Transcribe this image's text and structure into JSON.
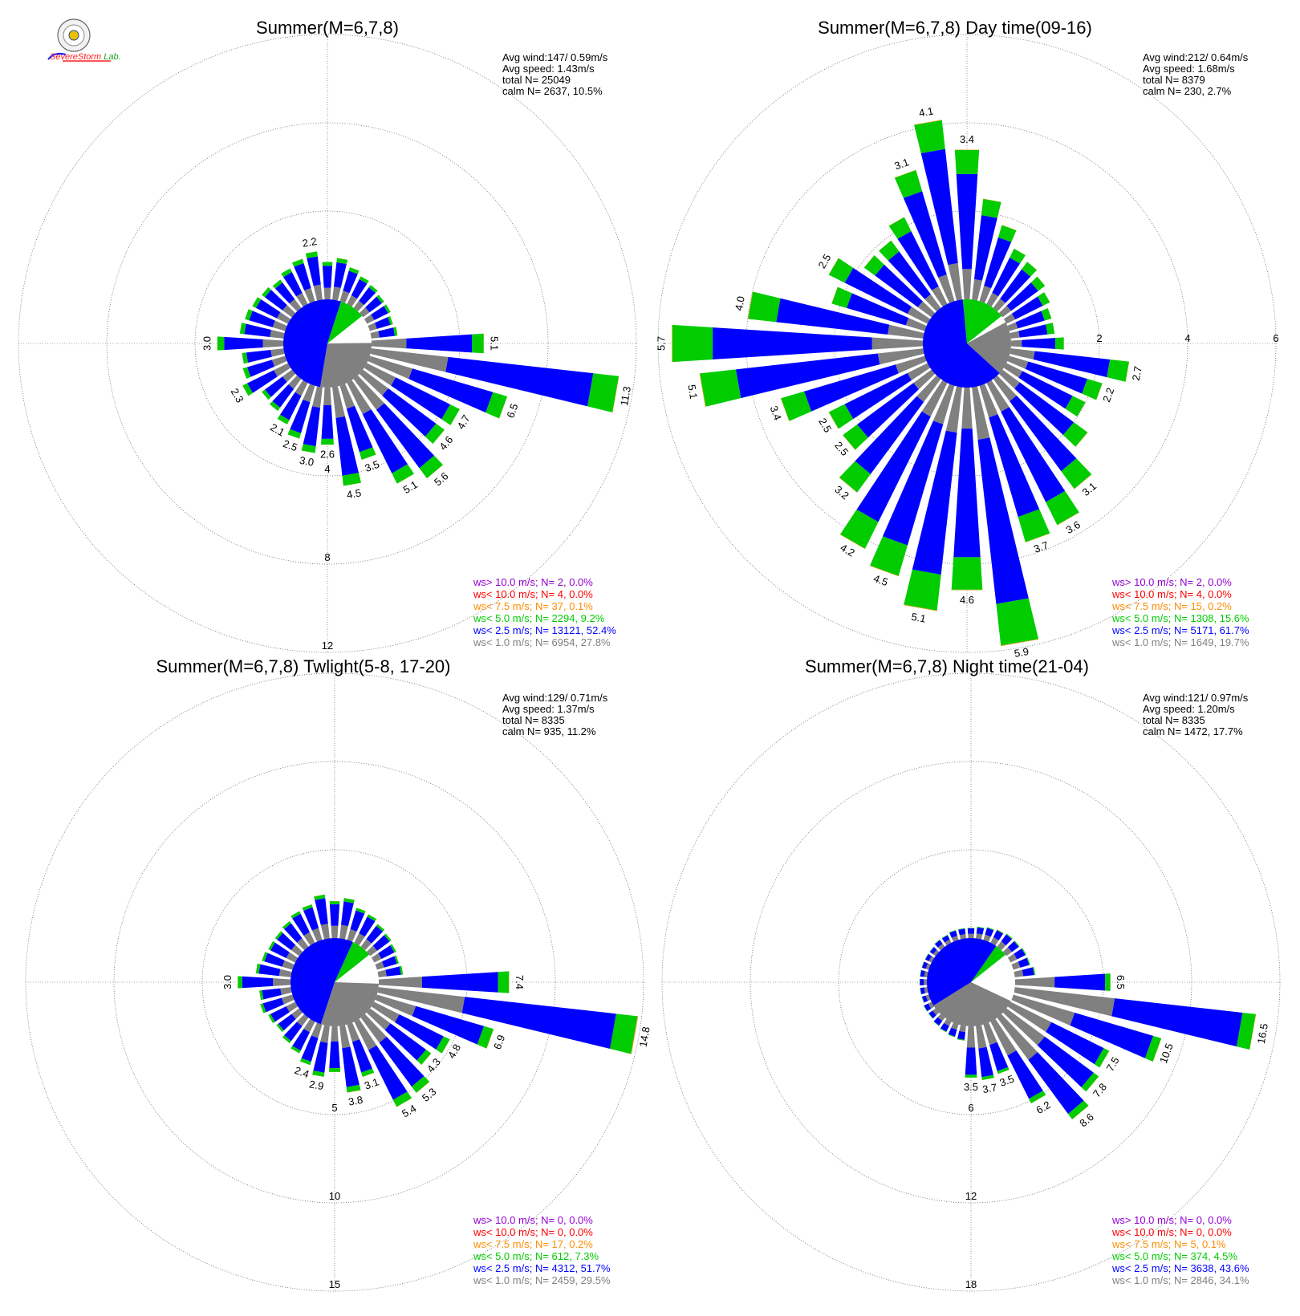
{
  "logo": {
    "name": "Severe Storm Lab."
  },
  "colors": {
    "calm": "#808080",
    "ws_lt_1": "#808080",
    "ws_lt_2_5": "#0000ff",
    "ws_lt_5": "#00cc00",
    "ws_lt_7_5": "#ff8c00",
    "ws_lt_10": "#ff0000",
    "ws_gt_10": "#9400d3",
    "grid": "#555555"
  },
  "chart_data": [
    {
      "type": "windrose",
      "title": "Summer(M=6,7,8)",
      "stats": [
        "Avg wind:147/ 0.59m/s",
        "Avg speed: 1.43m/s",
        "total N=       25049",
        "calm N=   2637,  10.5%"
      ],
      "ring_values": [
        4,
        8,
        12
      ],
      "ring_labels": [
        "4",
        "8",
        "12"
      ],
      "rmax": 12,
      "calm_pct": 10.5,
      "speed_classes": [
        0.278,
        0.524,
        0.092,
        0.001,
        0.0,
        0.0
      ],
      "bars": [
        {
          "dir": 90,
          "total": 5.1,
          "label": "5.1"
        },
        {
          "dir": 100,
          "total": 11.3,
          "label": "11.3"
        },
        {
          "dir": 110,
          "total": 6.5,
          "label": "6.5"
        },
        {
          "dir": 120,
          "total": 4.7,
          "label": "4.7"
        },
        {
          "dir": 130,
          "total": 4.6,
          "label": "4.6"
        },
        {
          "dir": 140,
          "total": 5.6,
          "label": "5.6"
        },
        {
          "dir": 150,
          "total": 5.1,
          "label": "5.1"
        },
        {
          "dir": 160,
          "total": 3.5,
          "label": "3.5"
        },
        {
          "dir": 170,
          "total": 4.5,
          "label": "4.5"
        },
        {
          "dir": 180,
          "total": 2.6,
          "label": "2.6"
        },
        {
          "dir": 190,
          "total": 3.0,
          "label": "3.0"
        },
        {
          "dir": 200,
          "total": 2.5,
          "label": "2.5"
        },
        {
          "dir": 210,
          "total": 2.1,
          "label": "2.1"
        },
        {
          "dir": 220,
          "total": 1.8
        },
        {
          "dir": 230,
          "total": 1.7
        },
        {
          "dir": 240,
          "total": 2.3,
          "label": "2.3"
        },
        {
          "dir": 250,
          "total": 2.0
        },
        {
          "dir": 260,
          "total": 1.9
        },
        {
          "dir": 270,
          "total": 3.0,
          "label": "3.0"
        },
        {
          "dir": 280,
          "total": 2.0
        },
        {
          "dir": 290,
          "total": 1.9
        },
        {
          "dir": 300,
          "total": 1.8
        },
        {
          "dir": 310,
          "total": 1.7
        },
        {
          "dir": 320,
          "total": 1.6
        },
        {
          "dir": 330,
          "total": 1.8
        },
        {
          "dir": 340,
          "total": 2.0
        },
        {
          "dir": 350,
          "total": 2.2,
          "label": "2.2"
        },
        {
          "dir": 0,
          "total": 1.7
        },
        {
          "dir": 10,
          "total": 1.9
        },
        {
          "dir": 20,
          "total": 1.6
        },
        {
          "dir": 30,
          "total": 1.4
        },
        {
          "dir": 40,
          "total": 1.3
        },
        {
          "dir": 50,
          "total": 1.2
        },
        {
          "dir": 60,
          "total": 1.2
        },
        {
          "dir": 70,
          "total": 1.1
        },
        {
          "dir": 80,
          "total": 1.2
        }
      ],
      "legend": [
        {
          "text": "ws> 10.0 m/s; N=     2,  0.0%",
          "class": "ws_gt_10"
        },
        {
          "text": "ws< 10.0 m/s; N=     4,  0.0%",
          "class": "ws_lt_10"
        },
        {
          "text": "ws<  7.5 m/s; N=    37,  0.1%",
          "class": "ws_lt_7_5"
        },
        {
          "text": "ws<  5.0 m/s; N=  2294,  9.2%",
          "class": "ws_lt_5"
        },
        {
          "text": "ws<  2.5 m/s; N= 13121, 52.4%",
          "class": "ws_lt_2_5"
        },
        {
          "text": "ws<  1.0 m/s; N=  6954, 27.8%",
          "class": "ws_lt_1"
        }
      ]
    },
    {
      "type": "windrose",
      "title": "Summer(M=6,7,8) Day time(09-16)",
      "stats": [
        "Avg wind:212/ 0.64m/s",
        "Avg speed: 1.68m/s",
        "total N=       8379",
        "calm N=    230,   2.7%"
      ],
      "ring_values": [
        2,
        4,
        6
      ],
      "ring_labels": [
        "2",
        "4",
        "6"
      ],
      "rmax": 6,
      "calm_pct": 2.7,
      "speed_classes": [
        0.197,
        0.617,
        0.156,
        0.002,
        0.0,
        0.0
      ],
      "bars": [
        {
          "dir": 90,
          "total": 1.2
        },
        {
          "dir": 100,
          "total": 2.7,
          "label": "2.7"
        },
        {
          "dir": 110,
          "total": 2.2,
          "label": "2.2"
        },
        {
          "dir": 120,
          "total": 2.0
        },
        {
          "dir": 130,
          "total": 2.4
        },
        {
          "dir": 140,
          "total": 3.1,
          "label": "3.1"
        },
        {
          "dir": 150,
          "total": 3.6,
          "label": "3.6"
        },
        {
          "dir": 160,
          "total": 3.7,
          "label": "3.7"
        },
        {
          "dir": 170,
          "total": 5.9,
          "label": "5.9"
        },
        {
          "dir": 180,
          "total": 4.6,
          "label": "4.6"
        },
        {
          "dir": 190,
          "total": 5.1,
          "label": "5.1"
        },
        {
          "dir": 200,
          "total": 4.5,
          "label": "4.5"
        },
        {
          "dir": 210,
          "total": 4.2,
          "label": "4.2"
        },
        {
          "dir": 220,
          "total": 3.2,
          "label": "3.2"
        },
        {
          "dir": 230,
          "total": 2.5,
          "label": "2.5"
        },
        {
          "dir": 240,
          "total": 2.5,
          "label": "2.5"
        },
        {
          "dir": 250,
          "total": 3.4,
          "label": "3.4"
        },
        {
          "dir": 260,
          "total": 5.1,
          "label": "5.1"
        },
        {
          "dir": 270,
          "total": 5.7,
          "label": "5.7"
        },
        {
          "dir": 280,
          "total": 4.0,
          "label": "4.0"
        },
        {
          "dir": 290,
          "total": 2.2
        },
        {
          "dir": 300,
          "total": 2.5,
          "label": "2.5"
        },
        {
          "dir": 310,
          "total": 1.9
        },
        {
          "dir": 320,
          "total": 1.9
        },
        {
          "dir": 330,
          "total": 2.2
        },
        {
          "dir": 340,
          "total": 3.1,
          "label": "3.1"
        },
        {
          "dir": 350,
          "total": 4.1,
          "label": "4.1"
        },
        {
          "dir": 0,
          "total": 3.4,
          "label": "3.4"
        },
        {
          "dir": 10,
          "total": 2.3
        },
        {
          "dir": 20,
          "total": 1.8
        },
        {
          "dir": 30,
          "total": 1.4
        },
        {
          "dir": 40,
          "total": 1.3
        },
        {
          "dir": 50,
          "total": 1.2
        },
        {
          "dir": 60,
          "total": 1.1
        },
        {
          "dir": 70,
          "total": 1.0
        },
        {
          "dir": 80,
          "total": 1.0
        }
      ],
      "legend": [
        {
          "text": "ws> 10.0 m/s; N=     2,  0.0%",
          "class": "ws_gt_10"
        },
        {
          "text": "ws< 10.0 m/s; N=     4,  0.0%",
          "class": "ws_lt_10"
        },
        {
          "text": "ws<  7.5 m/s; N=    15,  0.2%",
          "class": "ws_lt_7_5"
        },
        {
          "text": "ws<  5.0 m/s; N=  1308, 15.6%",
          "class": "ws_lt_5"
        },
        {
          "text": "ws<  2.5 m/s; N=  5171, 61.7%",
          "class": "ws_lt_2_5"
        },
        {
          "text": "ws<  1.0 m/s; N=  1649, 19.7%",
          "class": "ws_lt_1"
        }
      ]
    },
    {
      "type": "windrose",
      "title": "Summer(M=6,7,8) Twlight(5-8, 17-20)",
      "stats": [
        "Avg wind:129/ 0.71m/s",
        "Avg speed: 1.37m/s",
        "total N=       8335",
        "calm N=    935,  11.2%"
      ],
      "ring_values": [
        5,
        10,
        15
      ],
      "ring_labels": [
        "5",
        "10",
        "15"
      ],
      "rmax": 15,
      "calm_pct": 11.2,
      "speed_classes": [
        0.295,
        0.517,
        0.073,
        0.002,
        0.0,
        0.0
      ],
      "bars": [
        {
          "dir": 90,
          "total": 7.4,
          "label": "7.4"
        },
        {
          "dir": 100,
          "total": 14.8,
          "label": "14.8"
        },
        {
          "dir": 110,
          "total": 6.9,
          "label": "6.9"
        },
        {
          "dir": 120,
          "total": 4.8,
          "label": "4.8"
        },
        {
          "dir": 130,
          "total": 4.3,
          "label": "4.3"
        },
        {
          "dir": 140,
          "total": 5.3,
          "label": "5.3"
        },
        {
          "dir": 150,
          "total": 5.4,
          "label": "5.4"
        },
        {
          "dir": 160,
          "total": 3.1,
          "label": "3.1"
        },
        {
          "dir": 170,
          "total": 3.8,
          "label": "3.8"
        },
        {
          "dir": 180,
          "total": 2.6
        },
        {
          "dir": 190,
          "total": 2.9,
          "label": "2.9"
        },
        {
          "dir": 200,
          "total": 2.4,
          "label": "2.4"
        },
        {
          "dir": 210,
          "total": 2.0
        },
        {
          "dir": 220,
          "total": 1.8
        },
        {
          "dir": 230,
          "total": 1.6
        },
        {
          "dir": 240,
          "total": 1.7
        },
        {
          "dir": 250,
          "total": 1.9
        },
        {
          "dir": 260,
          "total": 1.8
        },
        {
          "dir": 270,
          "total": 3.0,
          "label": "3.0"
        },
        {
          "dir": 280,
          "total": 2.0
        },
        {
          "dir": 290,
          "total": 1.8
        },
        {
          "dir": 300,
          "total": 1.7
        },
        {
          "dir": 310,
          "total": 1.7
        },
        {
          "dir": 320,
          "total": 1.8
        },
        {
          "dir": 330,
          "total": 2.0
        },
        {
          "dir": 340,
          "total": 2.1
        },
        {
          "dir": 350,
          "total": 2.5
        },
        {
          "dir": 0,
          "total": 2.1
        },
        {
          "dir": 10,
          "total": 2.3
        },
        {
          "dir": 20,
          "total": 1.9
        },
        {
          "dir": 30,
          "total": 1.8
        },
        {
          "dir": 40,
          "total": 1.6
        },
        {
          "dir": 50,
          "total": 1.5
        },
        {
          "dir": 60,
          "total": 1.4
        },
        {
          "dir": 70,
          "total": 1.3
        },
        {
          "dir": 80,
          "total": 1.4
        }
      ],
      "legend": [
        {
          "text": "ws> 10.0 m/s; N=     0,  0.0%",
          "class": "ws_gt_10"
        },
        {
          "text": "ws< 10.0 m/s; N=     0,  0.0%",
          "class": "ws_lt_10"
        },
        {
          "text": "ws<  7.5 m/s; N=    17,  0.2%",
          "class": "ws_lt_7_5"
        },
        {
          "text": "ws<  5.0 m/s; N=   612,  7.3%",
          "class": "ws_lt_5"
        },
        {
          "text": "ws<  2.5 m/s; N=  4312, 51.7%",
          "class": "ws_lt_2_5"
        },
        {
          "text": "ws<  1.0 m/s; N=  2459, 29.5%",
          "class": "ws_lt_1"
        }
      ]
    },
    {
      "type": "windrose",
      "title": "Summer(M=6,7,8) Night time(21-04)",
      "stats": [
        "Avg wind:121/ 0.97m/s",
        "Avg speed: 1.20m/s",
        "total N=       8335",
        "calm N=   1472,  17.7%"
      ],
      "ring_values": [
        6,
        12,
        18
      ],
      "ring_labels": [
        "6",
        "12",
        "18"
      ],
      "rmax": 18,
      "calm_pct": 17.7,
      "speed_classes": [
        0.341,
        0.436,
        0.045,
        0.001,
        0.0,
        0.0
      ],
      "bars": [
        {
          "dir": 90,
          "total": 6.5,
          "label": "6.5"
        },
        {
          "dir": 100,
          "total": 16.5,
          "label": "16.5"
        },
        {
          "dir": 110,
          "total": 10.5,
          "label": "10.5"
        },
        {
          "dir": 120,
          "total": 7.5,
          "label": "7.5"
        },
        {
          "dir": 130,
          "total": 7.8,
          "label": "7.8"
        },
        {
          "dir": 140,
          "total": 8.6,
          "label": "8.6"
        },
        {
          "dir": 150,
          "total": 6.2,
          "label": "6.2"
        },
        {
          "dir": 160,
          "total": 3.5,
          "label": "3.5"
        },
        {
          "dir": 170,
          "total": 3.7,
          "label": "3.7"
        },
        {
          "dir": 180,
          "total": 3.5,
          "label": "3.5"
        },
        {
          "dir": 190,
          "total": 1.0
        },
        {
          "dir": 200,
          "total": 0.9
        },
        {
          "dir": 210,
          "total": 0.8
        },
        {
          "dir": 220,
          "total": 0.7
        },
        {
          "dir": 230,
          "total": 0.6
        },
        {
          "dir": 240,
          "total": 0.6
        },
        {
          "dir": 250,
          "total": 0.5
        },
        {
          "dir": 260,
          "total": 0.5
        },
        {
          "dir": 270,
          "total": 0.5
        },
        {
          "dir": 280,
          "total": 0.5
        },
        {
          "dir": 290,
          "total": 0.5
        },
        {
          "dir": 300,
          "total": 0.5
        },
        {
          "dir": 310,
          "total": 0.5
        },
        {
          "dir": 320,
          "total": 0.6
        },
        {
          "dir": 330,
          "total": 0.6
        },
        {
          "dir": 340,
          "total": 0.7
        },
        {
          "dir": 350,
          "total": 0.7
        },
        {
          "dir": 0,
          "total": 0.7
        },
        {
          "dir": 10,
          "total": 0.8
        },
        {
          "dir": 20,
          "total": 0.9
        },
        {
          "dir": 30,
          "total": 1.0
        },
        {
          "dir": 40,
          "total": 1.1
        },
        {
          "dir": 50,
          "total": 1.1
        },
        {
          "dir": 60,
          "total": 1.2
        },
        {
          "dir": 70,
          "total": 1.2
        },
        {
          "dir": 80,
          "total": 1.4
        }
      ],
      "legend": [
        {
          "text": "ws> 10.0 m/s; N=     0,  0.0%",
          "class": "ws_gt_10"
        },
        {
          "text": "ws< 10.0 m/s; N=     0,  0.0%",
          "class": "ws_lt_10"
        },
        {
          "text": "ws<  7.5 m/s; N=     5,  0.1%",
          "class": "ws_lt_7_5"
        },
        {
          "text": "ws<  5.0 m/s; N=   374,  4.5%",
          "class": "ws_lt_5"
        },
        {
          "text": "ws<  2.5 m/s; N=  3638, 43.6%",
          "class": "ws_lt_2_5"
        },
        {
          "text": "ws<  1.0 m/s; N=  2846, 34.1%",
          "class": "ws_lt_1"
        }
      ]
    }
  ]
}
